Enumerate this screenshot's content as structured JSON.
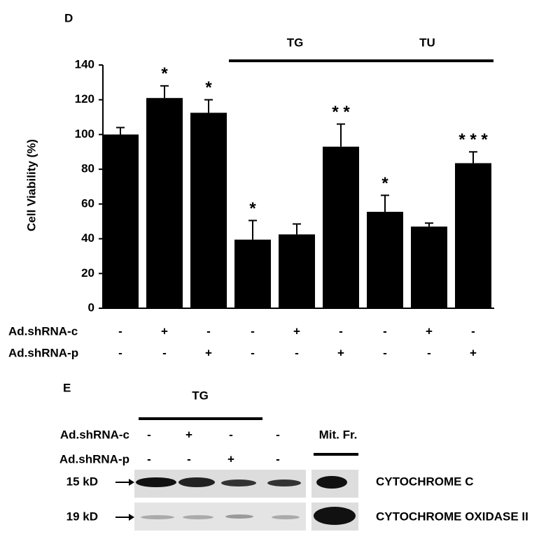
{
  "chart_data": {
    "type": "bar",
    "panel_label": "D",
    "y_label": "Cell Viability (%)",
    "values": [
      100,
      121,
      112.5,
      39.5,
      42.5,
      93,
      55.5,
      47,
      83.5
    ],
    "errors": [
      4,
      7,
      7.5,
      11,
      6,
      13,
      9.5,
      2,
      6.5
    ],
    "annotations": [
      null,
      "*",
      "*",
      "*",
      null,
      "* *",
      "*",
      null,
      "* * *"
    ],
    "color": "#000000",
    "ylim": [
      0,
      140
    ],
    "yticks": [
      0,
      20,
      40,
      60,
      80,
      100,
      120,
      140
    ],
    "groups": [
      {
        "label": "TG",
        "from": 3,
        "to": 5
      },
      {
        "label": "TU",
        "from": 6,
        "to": 8
      }
    ],
    "conditions": [
      {
        "name": "Ad.shRNA-c",
        "signs": [
          "-",
          "+",
          "-",
          "-",
          "+",
          "-",
          "-",
          "+",
          "-"
        ]
      },
      {
        "name": "Ad.shRNA-p",
        "signs": [
          "-",
          "-",
          "+",
          "-",
          "-",
          "+",
          "-",
          "-",
          "+"
        ]
      }
    ]
  },
  "blot": {
    "panel_label": "E",
    "group_label": "TG",
    "conditions": [
      {
        "name": "Ad.shRNA-c",
        "signs": [
          "-",
          "+",
          "-",
          "-"
        ]
      },
      {
        "name": "Ad.shRNA-p",
        "signs": [
          "-",
          "-",
          "+",
          "-"
        ]
      }
    ],
    "fraction_label": "Mit. Fr.",
    "rows": [
      {
        "size": "15 kD",
        "protein": "CYTOCHROME C"
      },
      {
        "size": "19 kD",
        "protein": "CYTOCHROME OXIDASE II"
      }
    ]
  }
}
